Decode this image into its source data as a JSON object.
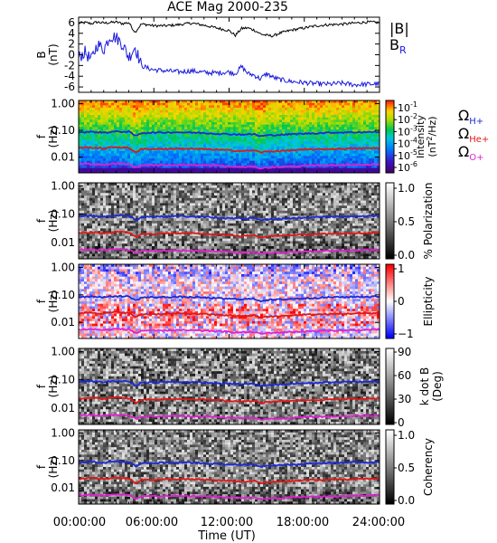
{
  "title": "ACE Mag 2000-235",
  "x_axis": {
    "label": "Time (UT)",
    "ticks": [
      "00:00:00",
      "06:00:00",
      "12:00:00",
      "18:00:00",
      "24:00:00"
    ]
  },
  "colors": {
    "B_total": "#000000",
    "B_R": "#1a1adc",
    "H_plus": "#1a2ad8",
    "He_plus": "#e01818",
    "O_plus": "#e020d0"
  },
  "chart_data": [
    {
      "type": "line",
      "panel": "magnetic-field",
      "ylabel_top": "B",
      "ylabel_bottom": "(nT)",
      "ylim": [
        -7,
        7
      ],
      "yticks": [
        "6",
        "4",
        "2",
        "0",
        "-2",
        "-4",
        "-6"
      ],
      "x_hours": [
        0,
        0.5,
        1,
        1.5,
        2,
        2.5,
        3,
        3.5,
        4,
        4.5,
        5,
        5.5,
        6,
        7,
        8,
        9,
        10,
        11,
        12,
        12.5,
        13,
        13.5,
        14,
        14.5,
        15,
        15.5,
        16,
        17,
        18,
        19,
        20,
        21,
        22,
        23,
        24
      ],
      "series": [
        {
          "name": "|B|",
          "color": "#000000",
          "values": [
            5.9,
            6.0,
            5.8,
            6.1,
            5.9,
            6.0,
            6.1,
            5.8,
            6.0,
            4.2,
            5.7,
            5.6,
            5.4,
            5.4,
            5.6,
            5.9,
            5.5,
            5.0,
            4.5,
            3.6,
            4.9,
            5.0,
            4.6,
            3.9,
            3.6,
            3.5,
            4.0,
            4.6,
            5.0,
            5.4,
            5.6,
            5.7,
            5.9,
            6.1,
            6.0
          ]
        },
        {
          "name": "B",
          "subscript": "R",
          "color": "#1a1adc",
          "values": [
            -0.5,
            0.5,
            -1.0,
            2.0,
            1.0,
            3.5,
            3.2,
            2.0,
            -0.5,
            1.5,
            -2.0,
            -2.5,
            -2.8,
            -3.0,
            -3.2,
            -3.0,
            -3.3,
            -3.4,
            -3.2,
            -3.5,
            -2.2,
            -3.5,
            -3.8,
            -4.5,
            -3.5,
            -4.2,
            -4.6,
            -5.0,
            -5.2,
            -5.4,
            -5.5,
            -5.3,
            -5.6,
            -5.5,
            -5.4
          ]
        }
      ]
    },
    {
      "type": "heatmap",
      "panel": "intensity",
      "ylabel_top": "f",
      "ylabel_bottom": "(Hz)",
      "yscale": "log",
      "ylim": [
        0.0026,
        1.3
      ],
      "yticks": [
        "1.00",
        "0.10",
        "0.01"
      ],
      "colorbar": {
        "label_parts": [
          "Intensity",
          "(nT",
          "2",
          "/Hz)"
        ],
        "scale": "log",
        "ticks": [
          {
            "base": "10",
            "exp": "-1"
          },
          {
            "base": "10",
            "exp": "-2"
          },
          {
            "base": "10",
            "exp": "-3"
          },
          {
            "base": "10",
            "exp": "-4"
          },
          {
            "base": "10",
            "exp": "-5"
          },
          {
            "base": "10",
            "exp": "-6"
          }
        ],
        "colormap": "rainbow"
      },
      "cyclotron_lines": true
    },
    {
      "type": "heatmap",
      "panel": "polarization",
      "ylabel_top": "f",
      "ylabel_bottom": "(Hz)",
      "yscale": "log",
      "ylim": [
        0.0026,
        1.3
      ],
      "yticks": [
        "1.00",
        "0.10",
        "0.01"
      ],
      "colorbar": {
        "label": "% Polarization",
        "ticks": [
          "1.0",
          "0.5",
          "0.0"
        ],
        "colormap": "gray"
      },
      "cyclotron_lines": true
    },
    {
      "type": "heatmap",
      "panel": "ellipticity",
      "ylabel_top": "f",
      "ylabel_bottom": "(Hz)",
      "yscale": "log",
      "ylim": [
        0.0026,
        1.3
      ],
      "yticks": [
        "1.00",
        "0.10",
        "0.01"
      ],
      "colorbar": {
        "label": "Ellipticity",
        "ticks": [
          "1",
          "0",
          "−1"
        ],
        "colormap": "bwr"
      },
      "cyclotron_lines": true
    },
    {
      "type": "heatmap",
      "panel": "wave-normal-angle",
      "ylabel_top": "f",
      "ylabel_bottom": "(Hz)",
      "yscale": "log",
      "ylim": [
        0.0026,
        1.3
      ],
      "yticks": [
        "1.00",
        "0.10",
        "0.01"
      ],
      "colorbar": {
        "label_line1": "k dot B",
        "label_line2": "(Deg)",
        "ticks": [
          "90",
          "60",
          "30",
          "0"
        ],
        "colormap": "gray"
      },
      "cyclotron_lines": true
    },
    {
      "type": "heatmap",
      "panel": "coherency",
      "ylabel_top": "f",
      "ylabel_bottom": "(Hz)",
      "yscale": "log",
      "ylim": [
        0.0026,
        1.3
      ],
      "yticks": [
        "1.00",
        "0.10",
        "0.01"
      ],
      "colorbar": {
        "label": "Coherency",
        "ticks": [
          "1.0",
          "0.5",
          "0.0"
        ],
        "colormap": "gray"
      },
      "cyclotron_lines": true
    }
  ],
  "legend": {
    "field": [
      {
        "text": "|B|",
        "sub": "",
        "color": "#000000"
      },
      {
        "text": "B",
        "sub": "R",
        "color": "#1a1adc"
      }
    ],
    "cyclotron": [
      {
        "text": "Ω",
        "sub": "H+",
        "color": "#1a2ad8"
      },
      {
        "text": "Ω",
        "sub": "He+",
        "color": "#e01818"
      },
      {
        "text": "Ω",
        "sub": "O+",
        "color": "#e020d0"
      }
    ]
  },
  "cyclotron_frequencies_hz": {
    "x_hours": [
      0,
      1,
      2,
      3,
      4,
      4.6,
      5,
      6,
      8,
      10,
      11,
      12,
      13,
      14,
      14.5,
      15,
      16,
      18,
      20,
      22,
      24
    ],
    "H_plus": [
      0.085,
      0.088,
      0.083,
      0.09,
      0.088,
      0.06,
      0.08,
      0.082,
      0.085,
      0.08,
      0.075,
      0.072,
      0.07,
      0.072,
      0.06,
      0.065,
      0.068,
      0.075,
      0.082,
      0.085,
      0.087
    ],
    "He_plus": [
      0.022,
      0.023,
      0.021,
      0.024,
      0.022,
      0.015,
      0.02,
      0.02,
      0.021,
      0.02,
      0.019,
      0.018,
      0.017,
      0.018,
      0.015,
      0.016,
      0.017,
      0.019,
      0.02,
      0.021,
      0.022
    ],
    "O_plus": [
      0.0055,
      0.0056,
      0.0053,
      0.0058,
      0.0055,
      0.004,
      0.005,
      0.005,
      0.0052,
      0.005,
      0.0048,
      0.0045,
      0.0043,
      0.0045,
      0.0038,
      0.0041,
      0.0043,
      0.0047,
      0.005,
      0.0052,
      0.0055
    ]
  }
}
